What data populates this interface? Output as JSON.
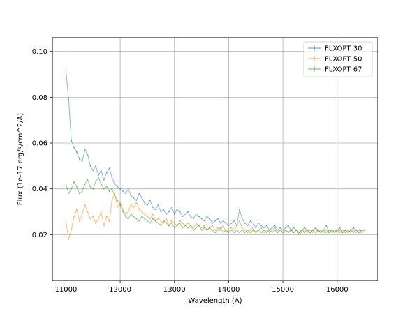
{
  "chart_data": {
    "type": "line",
    "title": "",
    "xlabel": "Wavelength (A)",
    "ylabel": "Flux (1e-17 erg/s/cm^2/A)",
    "xlim": [
      10750,
      16750
    ],
    "ylim": [
      0.0,
      0.106
    ],
    "xticks": [
      11000,
      12000,
      13000,
      14000,
      15000,
      16000
    ],
    "xtick_labels": [
      "11000",
      "12000",
      "13000",
      "14000",
      "15000",
      "16000"
    ],
    "yticks": [
      0.02,
      0.04,
      0.06,
      0.08,
      0.1
    ],
    "ytick_labels": [
      "0.02",
      "0.04",
      "0.06",
      "0.08",
      "0.10"
    ],
    "grid": true,
    "legend_position": "top-right",
    "x": [
      11000,
      11050,
      11100,
      11150,
      11200,
      11250,
      11300,
      11350,
      11400,
      11450,
      11500,
      11550,
      11600,
      11650,
      11700,
      11750,
      11800,
      11850,
      11900,
      11950,
      12000,
      12050,
      12100,
      12150,
      12200,
      12250,
      12300,
      12350,
      12400,
      12450,
      12500,
      12550,
      12600,
      12650,
      12700,
      12750,
      12800,
      12850,
      12900,
      12950,
      13000,
      13050,
      13100,
      13150,
      13200,
      13250,
      13300,
      13350,
      13400,
      13450,
      13500,
      13550,
      13600,
      13650,
      13700,
      13750,
      13800,
      13850,
      13900,
      13950,
      14000,
      14050,
      14100,
      14150,
      14200,
      14250,
      14300,
      14350,
      14400,
      14450,
      14500,
      14550,
      14600,
      14650,
      14700,
      14750,
      14800,
      14850,
      14900,
      14950,
      15000,
      15050,
      15100,
      15150,
      15200,
      15250,
      15300,
      15350,
      15400,
      15450,
      15500,
      15550,
      15600,
      15650,
      15700,
      15750,
      15800,
      15850,
      15900,
      15950,
      16000,
      16050,
      16100,
      16150,
      16200,
      16250,
      16300,
      16350,
      16400,
      16450,
      16500
    ],
    "series": [
      {
        "name": "FLXOPT 30",
        "color": "#1f77b4",
        "values": [
          0.092,
          0.079,
          0.061,
          0.058,
          0.056,
          0.053,
          0.052,
          0.057,
          0.055,
          0.05,
          0.048,
          0.05,
          0.046,
          0.048,
          0.044,
          0.047,
          0.049,
          0.045,
          0.042,
          0.041,
          0.04,
          0.039,
          0.038,
          0.04,
          0.037,
          0.036,
          0.035,
          0.038,
          0.036,
          0.034,
          0.033,
          0.035,
          0.032,
          0.031,
          0.033,
          0.03,
          0.031,
          0.029,
          0.03,
          0.032,
          0.029,
          0.031,
          0.03,
          0.028,
          0.029,
          0.03,
          0.028,
          0.027,
          0.029,
          0.028,
          0.027,
          0.026,
          0.028,
          0.027,
          0.025,
          0.026,
          0.027,
          0.025,
          0.026,
          0.025,
          0.024,
          0.025,
          0.026,
          0.024,
          0.031,
          0.027,
          0.025,
          0.024,
          0.026,
          0.025,
          0.023,
          0.025,
          0.024,
          0.023,
          0.024,
          0.022,
          0.023,
          0.024,
          0.022,
          0.023,
          0.022,
          0.023,
          0.024,
          0.022,
          0.023,
          0.022,
          0.021,
          0.022,
          0.023,
          0.022,
          0.021,
          0.022,
          0.023,
          0.022,
          0.021,
          0.022,
          0.024,
          0.021,
          0.022,
          0.021,
          0.022,
          0.023,
          0.021,
          0.022,
          0.021,
          0.022,
          0.023,
          0.022,
          0.021,
          0.022,
          0.022
        ]
      },
      {
        "name": "FLXOPT 50",
        "color": "#ff7f0e",
        "values": [
          0.026,
          0.018,
          0.022,
          0.028,
          0.031,
          0.026,
          0.029,
          0.033,
          0.03,
          0.027,
          0.028,
          0.025,
          0.027,
          0.03,
          0.024,
          0.028,
          0.026,
          0.035,
          0.038,
          0.032,
          0.034,
          0.031,
          0.029,
          0.03,
          0.033,
          0.032,
          0.034,
          0.031,
          0.03,
          0.029,
          0.028,
          0.027,
          0.029,
          0.026,
          0.027,
          0.026,
          0.025,
          0.027,
          0.024,
          0.026,
          0.025,
          0.024,
          0.026,
          0.025,
          0.024,
          0.025,
          0.024,
          0.023,
          0.025,
          0.024,
          0.023,
          0.024,
          0.022,
          0.023,
          0.024,
          0.022,
          0.023,
          0.022,
          0.024,
          0.021,
          0.022,
          0.023,
          0.022,
          0.024,
          0.026,
          0.023,
          0.022,
          0.021,
          0.022,
          0.023,
          0.021,
          0.022,
          0.023,
          0.021,
          0.022,
          0.021,
          0.022,
          0.023,
          0.021,
          0.022,
          0.021,
          0.022,
          0.021,
          0.022,
          0.021,
          0.022,
          0.02,
          0.021,
          0.022,
          0.021,
          0.022,
          0.021,
          0.023,
          0.021,
          0.022,
          0.021,
          0.022,
          0.021,
          0.022,
          0.021,
          0.022,
          0.021,
          0.022,
          0.021,
          0.022,
          0.021,
          0.022,
          0.021,
          0.022,
          0.021,
          0.022
        ]
      },
      {
        "name": "FLXOPT 67",
        "color": "#2ca02c",
        "values": [
          0.042,
          0.038,
          0.04,
          0.043,
          0.041,
          0.038,
          0.039,
          0.042,
          0.044,
          0.041,
          0.04,
          0.043,
          0.045,
          0.042,
          0.04,
          0.041,
          0.039,
          0.04,
          0.037,
          0.035,
          0.033,
          0.03,
          0.028,
          0.027,
          0.029,
          0.028,
          0.027,
          0.026,
          0.028,
          0.027,
          0.026,
          0.025,
          0.027,
          0.026,
          0.025,
          0.024,
          0.026,
          0.025,
          0.024,
          0.025,
          0.023,
          0.024,
          0.025,
          0.023,
          0.024,
          0.023,
          0.024,
          0.022,
          0.023,
          0.024,
          0.022,
          0.023,
          0.022,
          0.023,
          0.022,
          0.021,
          0.022,
          0.023,
          0.021,
          0.022,
          0.021,
          0.022,
          0.021,
          0.022,
          0.021,
          0.022,
          0.021,
          0.022,
          0.021,
          0.022,
          0.021,
          0.022,
          0.021,
          0.022,
          0.021,
          0.022,
          0.021,
          0.022,
          0.021,
          0.022,
          0.021,
          0.022,
          0.021,
          0.022,
          0.021,
          0.022,
          0.021,
          0.022,
          0.021,
          0.022,
          0.021,
          0.022,
          0.021,
          0.022,
          0.021,
          0.022,
          0.021,
          0.022,
          0.021,
          0.022,
          0.021,
          0.022,
          0.021,
          0.022,
          0.021,
          0.022,
          0.021,
          0.022,
          0.021,
          0.022,
          0.022
        ]
      }
    ]
  }
}
